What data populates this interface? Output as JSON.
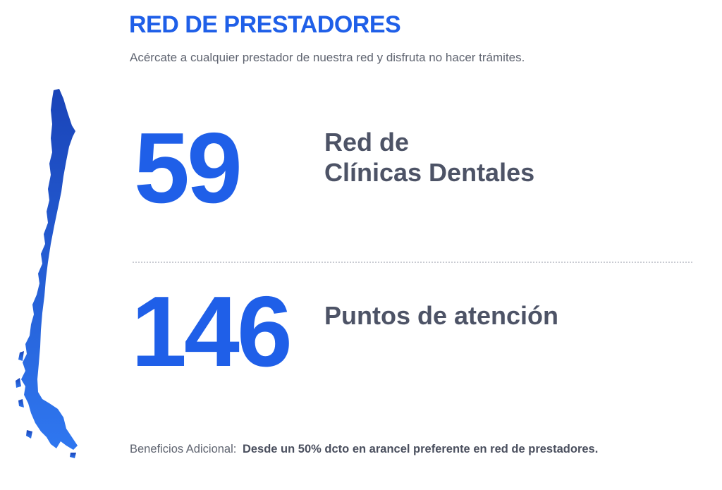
{
  "header": {
    "title": "RED DE PRESTADORES",
    "subtitle": "Acércate a cualquier prestador de nuestra red y disfruta no hacer trámites."
  },
  "stats": [
    {
      "number": "59",
      "label_line1": "Red de",
      "label_line2": "Clínicas Dentales"
    },
    {
      "number": "146",
      "label_line1": "Puntos de atención"
    }
  ],
  "footer": {
    "label": "Beneficios Adicional:",
    "text": "Desde un 50% dcto en arancel preferente en red de prestadores."
  },
  "colors": {
    "accent": "#1f5fe8",
    "label": "#4d5366",
    "muted": "#5f6470",
    "map_top": "#1a44b8",
    "map_bottom": "#2f77f0"
  },
  "icons": {
    "map": "chile-map-icon"
  }
}
